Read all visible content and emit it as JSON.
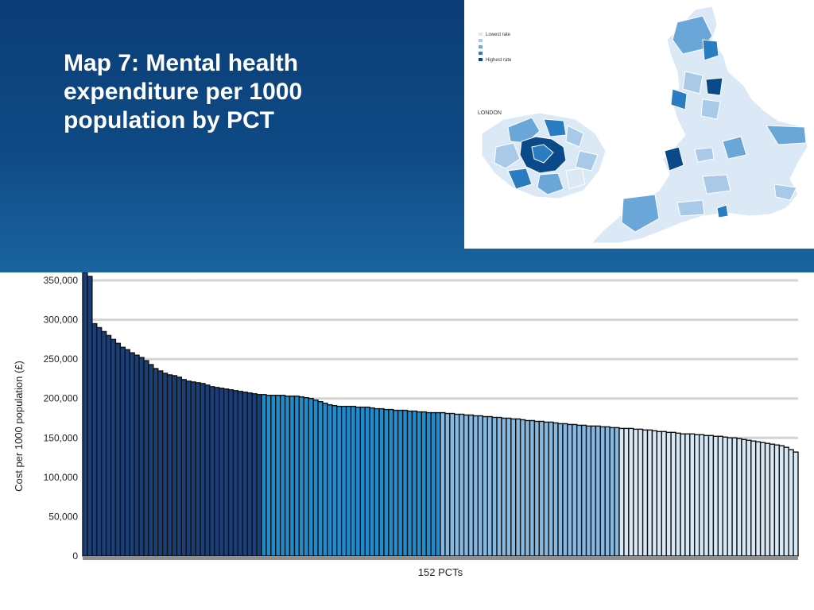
{
  "slide": {
    "title": "Map 7: Mental health expenditure per 1000 population by PCT"
  },
  "map": {
    "legend": [
      {
        "label": "Lowest rate",
        "color": "#dbe8f5"
      },
      {
        "label": "",
        "color": "#a9c9e8"
      },
      {
        "label": "",
        "color": "#6aa6d8"
      },
      {
        "label": "",
        "color": "#2a7dc0"
      },
      {
        "label": "Highest rate",
        "color": "#0b4a8a"
      }
    ],
    "london_label": "LONDON"
  },
  "chart_data": {
    "type": "bar",
    "xlabel": "152 PCTs",
    "ylabel": "Cost per 1000 population (£)",
    "ylim": [
      0,
      350000
    ],
    "yticks": [
      "0",
      "50,000",
      "100,000",
      "150,000",
      "200,000",
      "250,000",
      "300,000",
      "350,000"
    ],
    "grid": true,
    "legend": "none",
    "band_colors": [
      "#1a3f78",
      "#1f8ccf",
      "#86b8e0",
      "#d7e9f6"
    ],
    "values": [
      360000,
      355000,
      295000,
      290000,
      285000,
      280000,
      275000,
      270000,
      265000,
      262000,
      258000,
      255000,
      252000,
      248000,
      243000,
      238000,
      235000,
      232000,
      230000,
      229000,
      227000,
      224000,
      222000,
      221000,
      220000,
      219000,
      217000,
      215000,
      214000,
      213000,
      212000,
      211000,
      210000,
      209000,
      208000,
      207000,
      206000,
      205000,
      205000,
      204000,
      204000,
      204000,
      204000,
      203000,
      203000,
      203000,
      202000,
      201000,
      200000,
      198000,
      196000,
      194000,
      192000,
      191000,
      190000,
      190000,
      190000,
      190000,
      189000,
      189000,
      189000,
      188000,
      187000,
      187000,
      186000,
      186000,
      185000,
      185000,
      185000,
      184000,
      184000,
      183000,
      183000,
      182000,
      182000,
      182000,
      182000,
      181000,
      181000,
      180000,
      180000,
      179000,
      179000,
      178000,
      178000,
      177000,
      177000,
      176000,
      176000,
      175000,
      175000,
      174000,
      174000,
      173000,
      172000,
      172000,
      171000,
      171000,
      170000,
      170000,
      169000,
      168000,
      168000,
      167000,
      167000,
      166000,
      166000,
      165000,
      165000,
      165000,
      164000,
      164000,
      163000,
      163000,
      162000,
      162000,
      162000,
      161000,
      161000,
      160000,
      160000,
      159000,
      158000,
      158000,
      157000,
      157000,
      156000,
      155000,
      155000,
      155000,
      154000,
      154000,
      153000,
      153000,
      152000,
      152000,
      151000,
      150000,
      150000,
      149000,
      148000,
      147000,
      146000,
      145000,
      144000,
      143000,
      142000,
      141000,
      140000,
      138000,
      135000,
      132000
    ]
  }
}
